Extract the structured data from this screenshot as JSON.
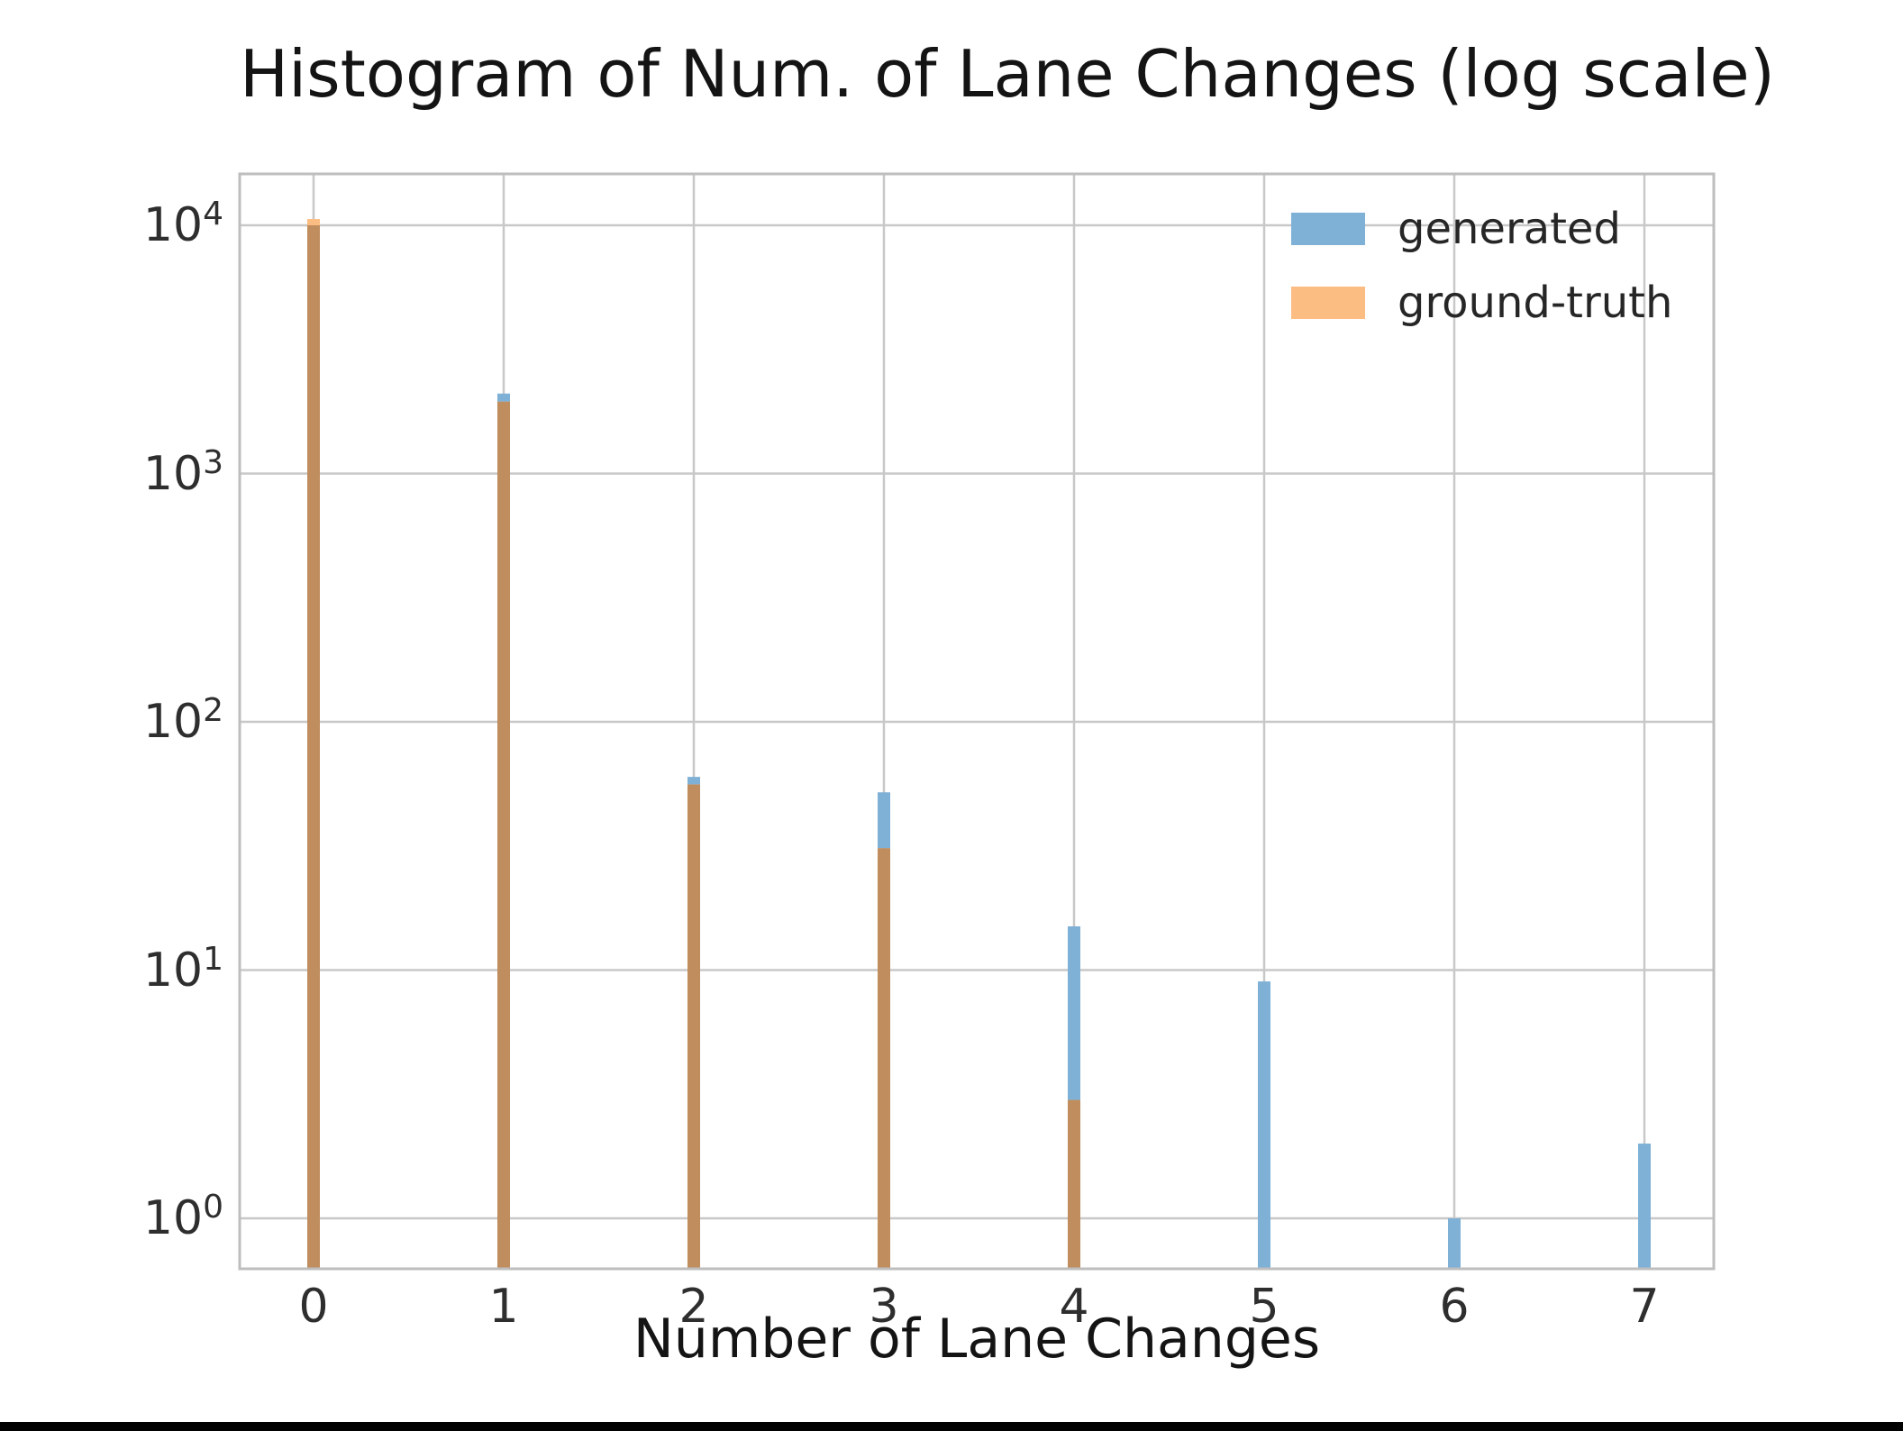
{
  "chart_data": {
    "type": "bar",
    "title": "Histogram of Num. of Lane Changes (log scale)",
    "xlabel": "Number of Lane Changes",
    "ylabel": "",
    "yscale": "log",
    "grid": true,
    "legend_position": "upper right",
    "categories": [
      0,
      1,
      2,
      3,
      4,
      5,
      6,
      7
    ],
    "x_ticklabels": [
      "0",
      "1",
      "2",
      "3",
      "4",
      "5",
      "6",
      "7"
    ],
    "y_ticks": [
      {
        "base": "10",
        "exp": "4"
      },
      {
        "base": "10",
        "exp": "3"
      },
      {
        "base": "10",
        "exp": "2"
      },
      {
        "base": "10",
        "exp": "1"
      },
      {
        "base": "10",
        "exp": "0"
      }
    ],
    "ylim": [
      0.63,
      17000
    ],
    "series": [
      {
        "name": "generated",
        "color": "#7fb1d6",
        "values": [
          10000,
          2100,
          60,
          52,
          15,
          9,
          1,
          2
        ]
      },
      {
        "name": "ground-truth",
        "color": "#fcbd82",
        "values": [
          10600,
          1950,
          56,
          31,
          3,
          0,
          0,
          0
        ]
      }
    ],
    "overlap_color": "#c08d5e"
  },
  "style_colors": {
    "grid": "#c8c8c8",
    "spine": "#bebebe",
    "background": "#ffffff",
    "bottom_strip": "#000000"
  }
}
